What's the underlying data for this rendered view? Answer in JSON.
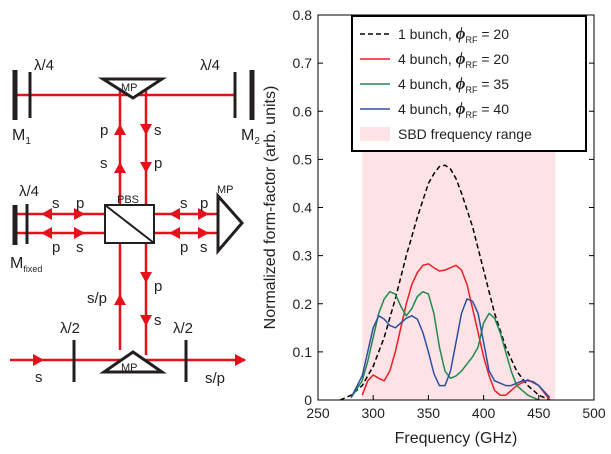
{
  "colors": {
    "beam": "#e4111b",
    "optic": "#231f20",
    "band": "#fde3e5"
  },
  "diagram": {
    "labels": {
      "quarter_wave": "λ/4",
      "half_wave": "λ/2",
      "mp": "MP",
      "pbs": "PBS",
      "s": "s",
      "p": "p",
      "sp": "s/p",
      "m1": "M",
      "m1_sub": "1",
      "m2": "M",
      "m2_sub": "2",
      "mfixed": "M",
      "mfixed_sub": "fixed"
    }
  },
  "chart_data": {
    "type": "line",
    "xlabel": "Frequency (GHz)",
    "ylabel": "Normalized form-factor (arb. units)",
    "xlim": [
      250,
      500
    ],
    "ylim": [
      0,
      0.8
    ],
    "xticks": [
      250,
      300,
      350,
      400,
      450,
      500
    ],
    "yticks": [
      0,
      0.1,
      0.2,
      0.3,
      0.4,
      0.5,
      0.6,
      0.7,
      0.8
    ],
    "xtick_labels": [
      "250",
      "300",
      "350",
      "400",
      "450",
      "500"
    ],
    "ytick_labels": [
      "0",
      "0.1",
      "0.2",
      "0.3",
      "0.4",
      "0.5",
      "0.6",
      "0.7",
      "0.8"
    ],
    "grid": false,
    "legend_position": "top-right",
    "band": {
      "label": "SBD frequency range",
      "x": [
        290,
        465
      ],
      "color": "#fde3e5"
    },
    "legend_units": "RF",
    "series": [
      {
        "name": "1 bunch,",
        "phi": "20",
        "color": "#000000",
        "dash": "dashed",
        "x": [
          270,
          280,
          290,
          300,
          310,
          320,
          330,
          340,
          350,
          355,
          360,
          365,
          370,
          375,
          380,
          390,
          400,
          410,
          420,
          430,
          440,
          450,
          460
        ],
        "y": [
          0.0,
          0.01,
          0.03,
          0.07,
          0.13,
          0.21,
          0.3,
          0.38,
          0.45,
          0.47,
          0.485,
          0.488,
          0.48,
          0.46,
          0.43,
          0.36,
          0.27,
          0.18,
          0.11,
          0.06,
          0.03,
          0.01,
          0.0
        ]
      },
      {
        "name": "4 bunch,",
        "phi": "20",
        "color": "#ee1c25",
        "dash": "solid",
        "x": [
          290,
          295,
          300,
          305,
          310,
          315,
          320,
          325,
          330,
          335,
          340,
          345,
          350,
          355,
          360,
          365,
          370,
          375,
          380,
          385,
          390,
          395,
          400,
          405,
          410,
          415,
          420,
          425,
          430,
          440,
          450,
          460
        ],
        "y": [
          0.01,
          0.04,
          0.052,
          0.045,
          0.04,
          0.06,
          0.1,
          0.15,
          0.2,
          0.24,
          0.265,
          0.28,
          0.283,
          0.275,
          0.268,
          0.27,
          0.275,
          0.28,
          0.27,
          0.24,
          0.19,
          0.14,
          0.09,
          0.05,
          0.02,
          0.01,
          0.01,
          0.02,
          0.03,
          0.042,
          0.03,
          0.0
        ]
      },
      {
        "name": "4 bunch,",
        "phi": "35",
        "color": "#1e8a4e",
        "dash": "solid",
        "x": [
          280,
          290,
          295,
          300,
          305,
          310,
          315,
          320,
          325,
          330,
          335,
          340,
          345,
          350,
          355,
          360,
          365,
          370,
          375,
          380,
          385,
          390,
          395,
          400,
          405,
          410,
          415,
          420,
          425,
          430,
          440,
          450
        ],
        "y": [
          0.005,
          0.04,
          0.08,
          0.13,
          0.18,
          0.21,
          0.225,
          0.22,
          0.195,
          0.175,
          0.19,
          0.215,
          0.225,
          0.22,
          0.18,
          0.11,
          0.06,
          0.045,
          0.05,
          0.06,
          0.075,
          0.09,
          0.11,
          0.16,
          0.18,
          0.17,
          0.14,
          0.1,
          0.06,
          0.03,
          0.01,
          0.0
        ]
      },
      {
        "name": "4 bunch,",
        "phi": "40",
        "color": "#2e4ea1",
        "dash": "solid",
        "x": [
          280,
          290,
          295,
          300,
          305,
          310,
          315,
          320,
          325,
          330,
          335,
          340,
          345,
          350,
          355,
          360,
          365,
          370,
          375,
          380,
          385,
          390,
          395,
          400,
          405,
          410,
          415,
          420,
          425,
          430,
          435,
          440,
          445,
          450,
          460
        ],
        "y": [
          0.005,
          0.05,
          0.1,
          0.15,
          0.175,
          0.168,
          0.155,
          0.15,
          0.16,
          0.17,
          0.175,
          0.168,
          0.14,
          0.1,
          0.055,
          0.03,
          0.03,
          0.06,
          0.12,
          0.18,
          0.21,
          0.205,
          0.18,
          0.12,
          0.06,
          0.04,
          0.035,
          0.03,
          0.03,
          0.035,
          0.04,
          0.04,
          0.038,
          0.03,
          0.005
        ]
      }
    ]
  }
}
